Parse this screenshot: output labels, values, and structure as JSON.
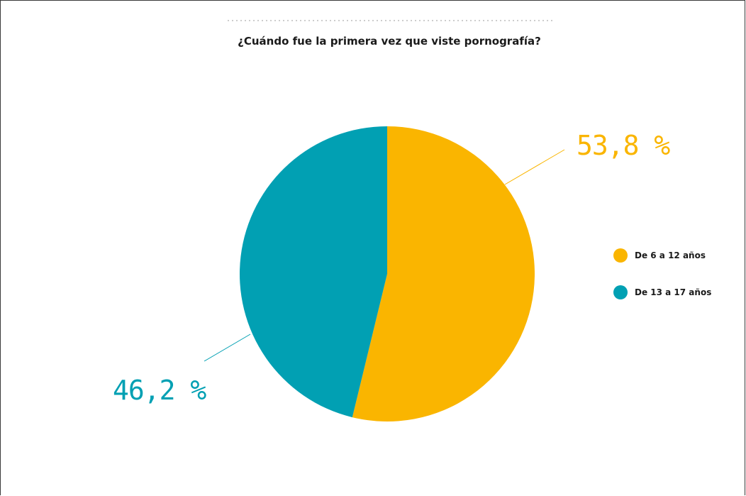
{
  "chart_data": {
    "type": "pie",
    "title": "¿Cuándo fue la primera vez que viste pornografía?",
    "categories": [
      "De 6 a 12 años",
      "De 13 a 17 años"
    ],
    "values": [
      53.8,
      46.2
    ],
    "value_labels": [
      "53,8 %",
      "46,2 %"
    ],
    "colors": [
      "#fab500",
      "#01a0b3"
    ],
    "legend_position": "right"
  }
}
